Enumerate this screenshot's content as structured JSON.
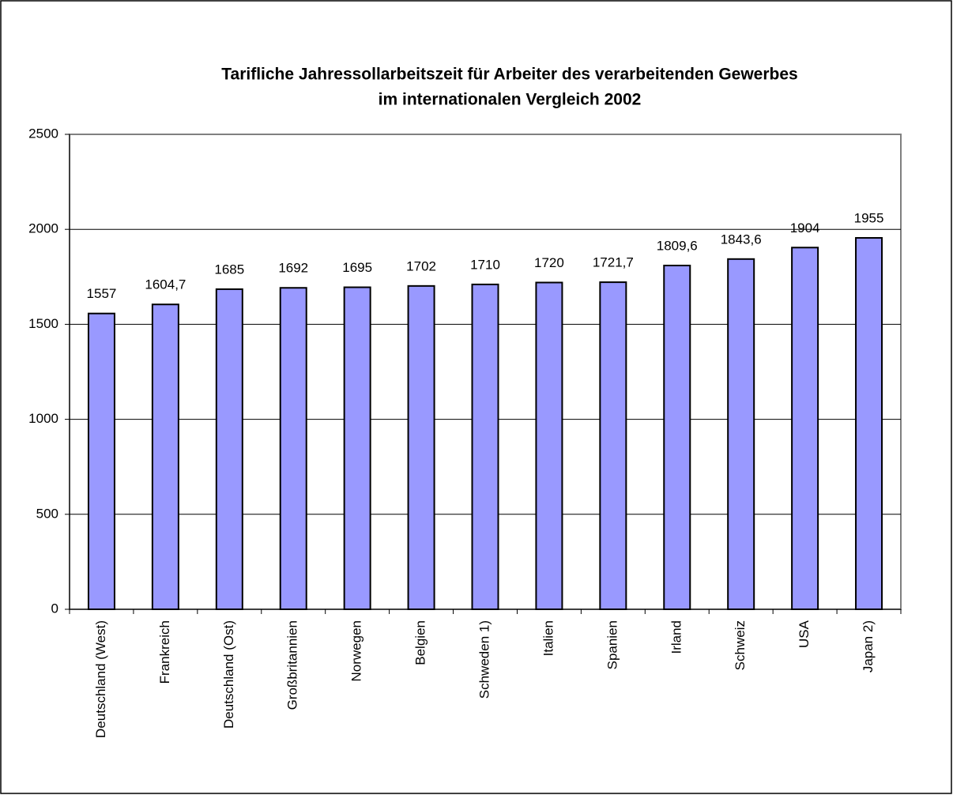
{
  "chart_data": {
    "type": "bar",
    "title": [
      "Tarifliche Jahressollarbeitszeit für Arbeiter des verarbeitenden Gewerbes",
      "im internationalen Vergleich 2002"
    ],
    "categories": [
      "Deutschland (West)",
      "Frankreich",
      "Deutschland (Ost)",
      "Großbritannien",
      "Norwegen",
      "Belgien",
      "Schweden 1)",
      "Italien",
      "Spanien",
      "Irland",
      "Schweiz",
      "USA",
      "Japan 2)"
    ],
    "values": [
      1557,
      1604.7,
      1685,
      1692,
      1695,
      1702,
      1710,
      1720,
      1721.7,
      1809.6,
      1843.6,
      1904,
      1955
    ],
    "value_labels": [
      "1557",
      "1604,7",
      "1685",
      "1692",
      "1695",
      "1702",
      "1710",
      "1720",
      "1721,7",
      "1809,6",
      "1843,6",
      "1904",
      "1955"
    ],
    "color": "#9999ff",
    "ylim": [
      0,
      2500
    ],
    "yticks": [
      0,
      500,
      1000,
      1500,
      2000,
      2500
    ],
    "grid": true
  }
}
